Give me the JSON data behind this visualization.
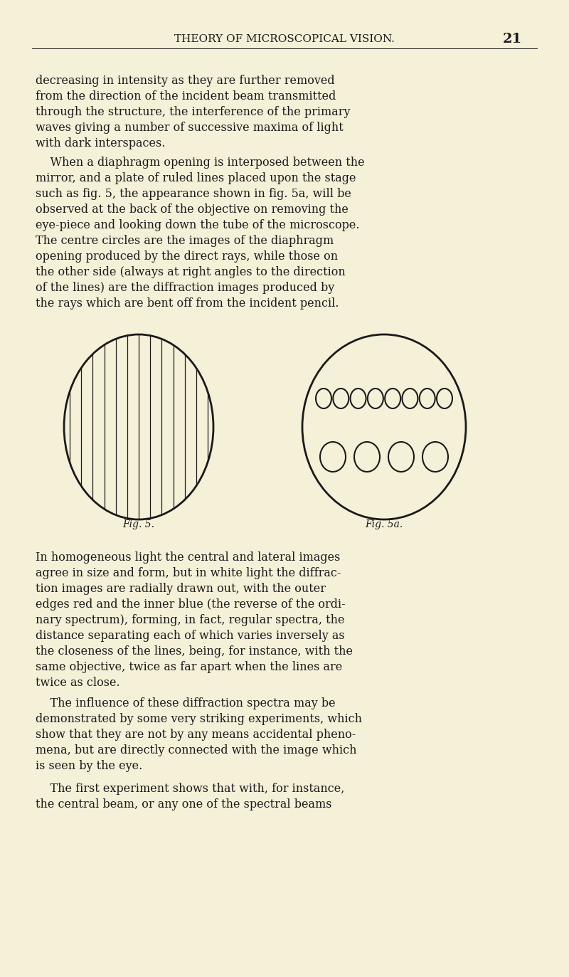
{
  "bg_color": "#f5f0d8",
  "text_color": "#1a1a1a",
  "page_title": "THEORY OF MICROSCOPICAL VISION.",
  "page_number": "21",
  "header_fontsize": 11,
  "body_fontsize": 11.5,
  "fig_label_fontsize": 10,
  "fig5_caption": "Fig. 5.",
  "fig5a_caption": "Fig. 5a.",
  "paragraph1": "decreasing in intensity as they are further removed\nfrom the direction of the incident beam transmitted\nthrough the structure, the interference of the primary\nwaves giving a number of successive maxima of light\nwith dark interspaces.",
  "paragraph2": "    When a diaphragm opening is interposed between the\nmirror, and a plate of ruled lines placed upon the stage\nsuch as fig. 5, the appearance shown in fig. 5a, will be\nobserved at the back of the objective on removing the\neye-piece and looking down the tube of the microscope.\nThe centre circles are the images of the diaphragm\nopening produced by the direct rays, while those on\nthe other side (always at right angles to the direction\nof the lines) are the diffraction images produced by\nthe rays which are bent off from the incident pencil.",
  "paragraph3": "In homogeneous light the central and lateral images\nagree in size and form, but in white light the diffrac-\ntion images are radially drawn out, with the outer\nedges red and the inner blue (the reverse of the ordi-\nnary spectrum), forming, in fact, regular spectra, the\ndistance separating each of which varies inversely as\nthe closeness of the lines, being, for instance, with the\nsame objective, twice as far apart when the lines are\ntwice as close.",
  "paragraph4": "    The influence of these diffraction spectra may be\ndemonstrated by some very striking experiments, which\nshow that they are not by any means accidental pheno-\nmena, but are directly connected with the image which\nis seen by the eye.",
  "paragraph5": "    The first experiment shows that with, for instance,\nthe central beam, or any one of the spectral beams"
}
